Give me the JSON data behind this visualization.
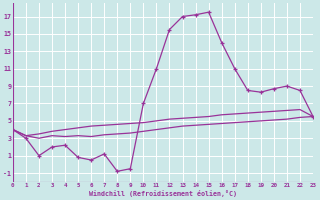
{
  "xlabel": "Windchill (Refroidissement éolien,°C)",
  "background_color": "#cce8e8",
  "grid_color": "#aacccc",
  "line_color": "#993399",
  "x_hours": [
    0,
    1,
    2,
    3,
    4,
    5,
    6,
    7,
    8,
    9,
    10,
    11,
    12,
    13,
    14,
    15,
    16,
    17,
    18,
    19,
    20,
    21,
    22,
    23
  ],
  "line1": [
    4.0,
    3.0,
    1.0,
    2.0,
    2.2,
    0.8,
    0.5,
    1.2,
    -0.8,
    -0.5,
    7.0,
    11.0,
    15.5,
    17.0,
    17.2,
    17.5,
    14.0,
    11.0,
    8.5,
    8.3,
    8.7,
    9.0,
    8.5,
    5.5
  ],
  "line2": [
    4.0,
    3.3,
    3.5,
    3.8,
    4.0,
    4.2,
    4.4,
    4.5,
    4.6,
    4.7,
    4.8,
    5.0,
    5.2,
    5.3,
    5.4,
    5.5,
    5.7,
    5.8,
    5.9,
    6.0,
    6.1,
    6.2,
    6.3,
    5.5
  ],
  "line3": [
    4.0,
    3.3,
    3.0,
    3.3,
    3.2,
    3.3,
    3.2,
    3.4,
    3.5,
    3.6,
    3.8,
    4.0,
    4.2,
    4.4,
    4.5,
    4.6,
    4.7,
    4.8,
    4.9,
    5.0,
    5.1,
    5.2,
    5.4,
    5.5
  ],
  "xlim": [
    0,
    23
  ],
  "ylim": [
    -2,
    18.5
  ],
  "yticks": [
    -1,
    1,
    3,
    5,
    7,
    9,
    11,
    13,
    15,
    17
  ],
  "xtick_labels": [
    "0",
    "1",
    "2",
    "3",
    "4",
    "5",
    "6",
    "7",
    "8",
    "9",
    "10",
    "11",
    "12",
    "13",
    "14",
    "15",
    "16",
    "17",
    "18",
    "19",
    "20",
    "21",
    "22",
    "23"
  ],
  "figsize": [
    3.2,
    2.0
  ],
  "dpi": 100
}
